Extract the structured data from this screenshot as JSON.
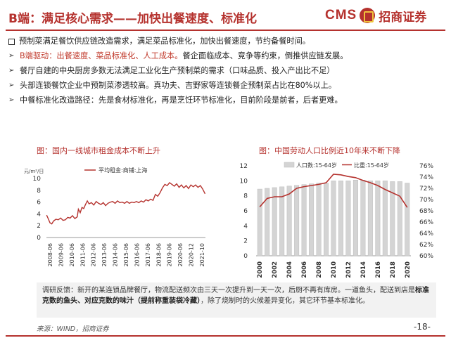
{
  "header": {
    "title": "B端：满足核心需求——加快出餐速度、标准化",
    "logo_text": "CMS",
    "logo_icon": "cms-logo-icon",
    "logo_name": "招商证券",
    "brand_color": "#b5322e"
  },
  "bullets": [
    {
      "marker": "square",
      "parts": [
        {
          "text": "预制菜满足餐饮供应链改造需求，满足菜品标准化，加快出餐速度，节约备餐时间。",
          "red": false
        }
      ]
    },
    {
      "marker": "arrow",
      "parts": [
        {
          "text": "B端驱动：出餐速度、菜品标准化、人工成本。",
          "red": true
        },
        {
          "text": "餐企面临成本、竞争等约束，倒推供应链发展。",
          "red": false
        }
      ]
    },
    {
      "marker": "arrow",
      "parts": [
        {
          "text": "餐厅自建的中央厨房多数无法满足工业化生产预制菜的需求（口味品质、投入产出比不足）",
          "red": false
        }
      ]
    },
    {
      "marker": "arrow",
      "parts": [
        {
          "text": "头部连锁餐饮企业中预制菜渗透较高。真功夫、吉野家等连锁餐企预制菜占比在80%以上。",
          "red": false
        }
      ]
    },
    {
      "marker": "arrow",
      "parts": [
        {
          "text": "中餐标准化改造路径：先是食材标准化，再是烹饪环节标准化，目前阶段是前者，后者更难。",
          "red": false
        }
      ]
    }
  ],
  "chart_data": [
    {
      "type": "line",
      "title": "图：国内一线城市租金成本不断上升",
      "ylabel": "元/m²/日",
      "ylim": [
        0,
        10
      ],
      "yticks": [
        "0",
        "2",
        "4",
        "6",
        "8",
        "10"
      ],
      "xticks": [
        "2008-06",
        "2009-06",
        "2010-06",
        "2011-06",
        "2012-06",
        "2013-06",
        "2014-06",
        "2015-06",
        "2016-06",
        "2017-06",
        "2018-06",
        "2019-06",
        "2020-06",
        "2020-12",
        "2021-10"
      ],
      "x_range": [
        2008.4,
        2021.83
      ],
      "series": [
        {
          "name": "平均租金:商铺:上海",
          "color": "#b5322e",
          "points": [
            [
              2008.42,
              3.8
            ],
            [
              2008.55,
              3.2
            ],
            [
              2008.7,
              2.5
            ],
            [
              2008.85,
              2.3
            ],
            [
              2009.0,
              2.8
            ],
            [
              2009.2,
              3.1
            ],
            [
              2009.4,
              3.0
            ],
            [
              2009.6,
              3.3
            ],
            [
              2009.8,
              2.9
            ],
            [
              2010.0,
              3.0
            ],
            [
              2010.2,
              3.4
            ],
            [
              2010.4,
              3.3
            ],
            [
              2010.6,
              3.7
            ],
            [
              2010.8,
              3.2
            ],
            [
              2011.0,
              3.5
            ],
            [
              2011.1,
              4.8
            ],
            [
              2011.25,
              4.2
            ],
            [
              2011.4,
              5.1
            ],
            [
              2011.55,
              4.9
            ],
            [
              2011.7,
              5.6
            ],
            [
              2011.85,
              6.2
            ],
            [
              2012.0,
              5.7
            ],
            [
              2012.2,
              5.9
            ],
            [
              2012.4,
              5.5
            ],
            [
              2012.6,
              6.1
            ],
            [
              2012.8,
              5.8
            ],
            [
              2013.0,
              5.6
            ],
            [
              2013.2,
              5.9
            ],
            [
              2013.4,
              5.4
            ],
            [
              2013.6,
              5.8
            ],
            [
              2013.8,
              6.0
            ],
            [
              2014.0,
              6.1
            ],
            [
              2014.2,
              5.8
            ],
            [
              2014.4,
              6.2
            ],
            [
              2014.6,
              5.9
            ],
            [
              2014.8,
              6.0
            ],
            [
              2015.0,
              5.8
            ],
            [
              2015.2,
              6.1
            ],
            [
              2015.4,
              5.8
            ],
            [
              2015.6,
              6.0
            ],
            [
              2015.8,
              5.9
            ],
            [
              2016.0,
              6.1
            ],
            [
              2016.2,
              5.9
            ],
            [
              2016.4,
              6.2
            ],
            [
              2016.6,
              6.0
            ],
            [
              2016.8,
              6.4
            ],
            [
              2017.0,
              6.2
            ],
            [
              2017.2,
              6.5
            ],
            [
              2017.4,
              6.3
            ],
            [
              2017.6,
              7.3
            ],
            [
              2017.8,
              7.0
            ],
            [
              2018.0,
              7.6
            ],
            [
              2018.2,
              8.4
            ],
            [
              2018.4,
              9.0
            ],
            [
              2018.6,
              8.8
            ],
            [
              2018.8,
              9.3
            ],
            [
              2019.0,
              9.0
            ],
            [
              2019.2,
              8.7
            ],
            [
              2019.4,
              9.1
            ],
            [
              2019.6,
              8.5
            ],
            [
              2019.8,
              8.9
            ],
            [
              2020.0,
              8.4
            ],
            [
              2020.2,
              8.8
            ],
            [
              2020.4,
              8.3
            ],
            [
              2020.6,
              8.9
            ],
            [
              2020.8,
              8.6
            ],
            [
              2021.0,
              8.9
            ],
            [
              2021.2,
              8.5
            ],
            [
              2021.4,
              8.8
            ],
            [
              2021.6,
              8.2
            ],
            [
              2021.8,
              7.4
            ]
          ]
        }
      ]
    },
    {
      "type": "bar+line",
      "title": "图：中国劳动人口比例近10年来不断下降",
      "categories": [
        "2000",
        "2001",
        "2002",
        "2003",
        "2004",
        "2005",
        "2006",
        "2007",
        "2008",
        "2009",
        "2010",
        "2011",
        "2012",
        "2013",
        "2014",
        "2015",
        "2016",
        "2017",
        "2018",
        "2019",
        "2020"
      ],
      "xticks": [
        "2000",
        "2002",
        "2004",
        "2006",
        "2008",
        "2010",
        "2012",
        "2014",
        "2016",
        "2018",
        "2020"
      ],
      "ylim_left": [
        0,
        12
      ],
      "yticks_left": [
        "0",
        "2",
        "4",
        "6",
        "8",
        "10",
        "12"
      ],
      "ylim_right": [
        60,
        76
      ],
      "yticks_right": [
        "60%",
        "62%",
        "64%",
        "66%",
        "68%",
        "70%",
        "72%",
        "74%",
        "76%"
      ],
      "series": [
        {
          "name": "人口数:15-64岁",
          "type": "bar",
          "axis": "left",
          "color": "#d4d4d4",
          "values": [
            8.9,
            9.0,
            9.1,
            9.2,
            9.3,
            9.4,
            9.5,
            9.6,
            9.7,
            9.7,
            10.0,
            10.0,
            10.0,
            10.1,
            10.1,
            10.0,
            10.0,
            10.0,
            9.9,
            9.9,
            9.7
          ]
        },
        {
          "name": "比重:15-64岁",
          "type": "line",
          "axis": "right",
          "color": "#b5322e",
          "values": [
            68.7,
            70.2,
            70.5,
            70.5,
            71.0,
            72.0,
            72.3,
            72.5,
            72.7,
            73.0,
            74.5,
            74.4,
            74.1,
            73.9,
            73.4,
            73.0,
            72.5,
            71.8,
            71.2,
            70.6,
            68.6
          ]
        }
      ]
    }
  ],
  "note": {
    "t1": "调研反馈：新开的某连锁品牌餐厅，物流配送频次由三天一次提升到一天一次，后厨不再有库房。一道鱼头，配送到店是",
    "t2": "标准克数的鱼头、对应克数的味汁（提前称重装袋冷藏）",
    "t3": "，除了烧制时的火候差异变化，其它环节基本标准化。"
  },
  "footer": {
    "source": "来源：WIND，招商证券",
    "page": "-18-"
  }
}
